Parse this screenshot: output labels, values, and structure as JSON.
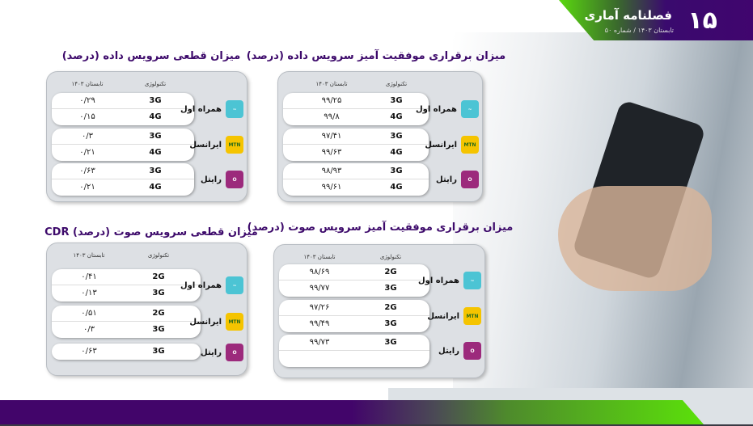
{
  "header": {
    "issue_number": "۱۵",
    "magazine_title": "فصلنامه آماری",
    "subtitle": "تابستان ۱۴۰۳ / شماره ۵۰"
  },
  "colors": {
    "purple": "#40056e",
    "green": "#5ad80f",
    "hamrah_aval": "#4cc4d4",
    "irancell": "#f5c400",
    "rightel": "#9c2a7c"
  },
  "panels": [
    {
      "title": "میزان برقراری موفقیت آمیز سرویس داده (درصد)",
      "col_tech": "تکنولوژی",
      "col_period": "تابستان ۱۴۰۳",
      "operators": [
        {
          "name": "همراه اول",
          "logo": "hamrah-aval-logo",
          "rows": [
            {
              "tech": "3G",
              "value": "۹۹/۲۵"
            },
            {
              "tech": "4G",
              "value": "۹۹/۸"
            }
          ]
        },
        {
          "name": "ایرانسل",
          "logo": "irancell-logo",
          "rows": [
            {
              "tech": "3G",
              "value": "۹۷/۴۱"
            },
            {
              "tech": "4G",
              "value": "۹۹/۶۳"
            }
          ]
        },
        {
          "name": "رایتل",
          "logo": "rightel-logo",
          "rows": [
            {
              "tech": "3G",
              "value": "۹۸/۹۳"
            },
            {
              "tech": "4G",
              "value": "۹۹/۶۱"
            }
          ]
        }
      ]
    },
    {
      "title": "میزان قطعی سرویس داده (درصد)",
      "col_tech": "تکنولوژی",
      "col_period": "تابستان ۱۴۰۳",
      "operators": [
        {
          "name": "همراه اول",
          "logo": "hamrah-aval-logo",
          "rows": [
            {
              "tech": "3G",
              "value": "۰/۲۹"
            },
            {
              "tech": "4G",
              "value": "۰/۱۵"
            }
          ]
        },
        {
          "name": "ایرانسل",
          "logo": "irancell-logo",
          "rows": [
            {
              "tech": "3G",
              "value": "۰/۳"
            },
            {
              "tech": "4G",
              "value": "۰/۲۱"
            }
          ]
        },
        {
          "name": "رایتل",
          "logo": "rightel-logo",
          "rows": [
            {
              "tech": "3G",
              "value": "۰/۶۳"
            },
            {
              "tech": "4G",
              "value": "۰/۲۱"
            }
          ]
        }
      ]
    },
    {
      "title": "میزان برقراری موفقیت آمیز سرویس صوت (درصد)",
      "col_tech": "تکنولوژی",
      "col_period": "تابستان ۱۴۰۳",
      "operators": [
        {
          "name": "همراه اول",
          "logo": "hamrah-aval-logo",
          "rows": [
            {
              "tech": "2G",
              "value": "۹۸/۶۹"
            },
            {
              "tech": "3G",
              "value": "۹۹/۷۷"
            }
          ]
        },
        {
          "name": "ایرانسل",
          "logo": "irancell-logo",
          "rows": [
            {
              "tech": "2G",
              "value": "۹۷/۲۶"
            },
            {
              "tech": "3G",
              "value": "۹۹/۴۹"
            }
          ]
        },
        {
          "name": "رایتل",
          "logo": "rightel-logo",
          "rows": [
            {
              "tech": "3G",
              "value": "۹۹/۷۳"
            },
            {
              "tech": "",
              "value": ""
            }
          ]
        }
      ]
    },
    {
      "title": "میزان قطعی سرویس صوت (درصد) CDR",
      "col_tech": "تکنولوژی",
      "col_period": "تابستان ۱۴۰۳",
      "operators": [
        {
          "name": "همراه اول",
          "logo": "hamrah-aval-logo",
          "rows": [
            {
              "tech": "2G",
              "value": "۰/۴۱"
            },
            {
              "tech": "3G",
              "value": "۰/۱۳"
            }
          ]
        },
        {
          "name": "ایرانسل",
          "logo": "irancell-logo",
          "rows": [
            {
              "tech": "2G",
              "value": "۰/۵۱"
            },
            {
              "tech": "3G",
              "value": "۰/۳"
            }
          ]
        },
        {
          "name": "رایتل",
          "logo": "rightel-logo",
          "rows": [
            {
              "tech": "3G",
              "value": "۰/۶۳"
            }
          ]
        }
      ]
    }
  ]
}
